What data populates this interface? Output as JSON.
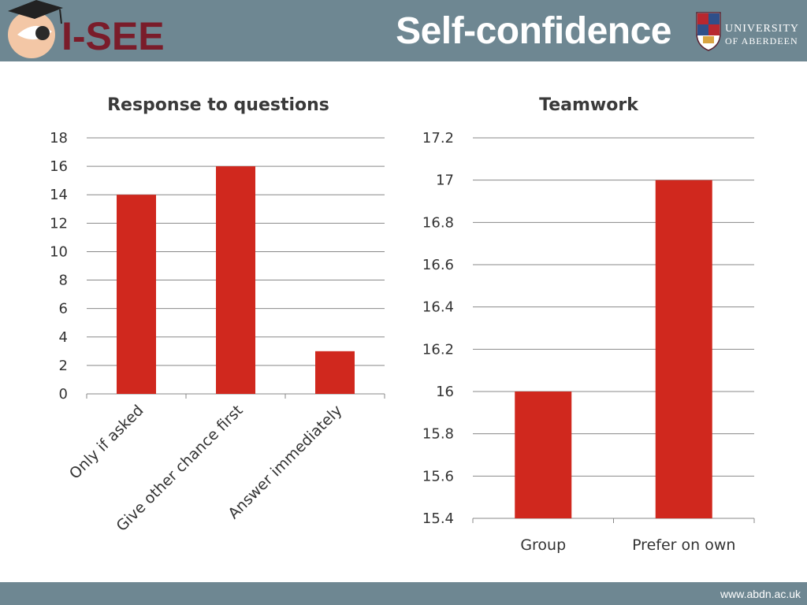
{
  "header": {
    "logo_text": "I-SEE",
    "title": "Self-confidence",
    "university_line1": "UNIVERSITY",
    "university_line2": "OF ABERDEEN"
  },
  "footer": {
    "url": "www.abdn.ac.uk"
  },
  "colors": {
    "header_bg": "#6e8792",
    "bar": "#d0281e",
    "logo_maroon": "#7a1c2a",
    "grid": "#888888"
  },
  "chart_data": [
    {
      "type": "bar",
      "title": "Response to questions",
      "categories": [
        "Only if asked",
        "Give other chance first",
        "Answer immediately"
      ],
      "values": [
        14,
        16,
        3
      ],
      "ylim": [
        0,
        18
      ],
      "yticks": [
        "0",
        "2",
        "4",
        "6",
        "8",
        "10",
        "12",
        "14",
        "16",
        "18"
      ],
      "grid": true,
      "xlabel": "",
      "ylabel": ""
    },
    {
      "type": "bar",
      "title": "Teamwork",
      "categories": [
        "Group",
        "Prefer on own"
      ],
      "values": [
        16,
        17
      ],
      "ylim": [
        15.4,
        17.2
      ],
      "yticks": [
        "15.4",
        "15.6",
        "15.8",
        "16",
        "16.2",
        "16.4",
        "16.6",
        "16.8",
        "17",
        "17.2"
      ],
      "grid": true,
      "xlabel": "",
      "ylabel": ""
    }
  ]
}
